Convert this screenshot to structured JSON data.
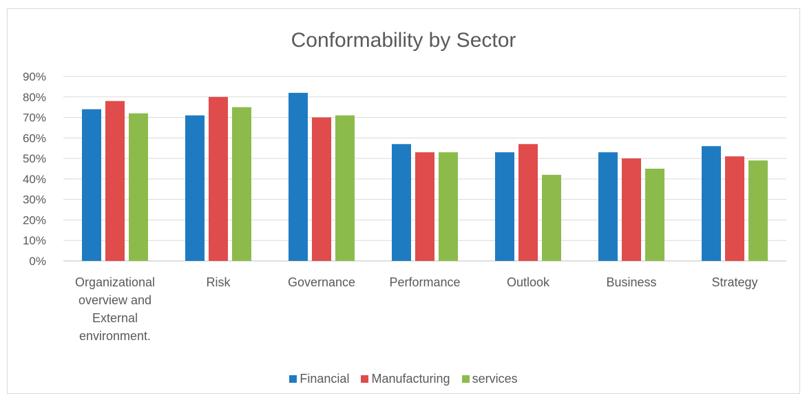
{
  "chart_data": {
    "type": "bar",
    "title": "Conformability  by Sector",
    "categories": [
      [
        "Organizational",
        "overview and",
        "External",
        "environment."
      ],
      [
        "Risk"
      ],
      [
        "Governance"
      ],
      [
        "Performance"
      ],
      [
        "Outlook"
      ],
      [
        "Business"
      ],
      [
        "Strategy"
      ]
    ],
    "series": [
      {
        "name": "Financial",
        "color": "#1f7bc1",
        "values": [
          0.74,
          0.71,
          0.82,
          0.57,
          0.53,
          0.53,
          0.56
        ]
      },
      {
        "name": "Manufacturing",
        "color": "#e04b4b",
        "values": [
          0.78,
          0.8,
          0.7,
          0.53,
          0.57,
          0.5,
          0.51
        ]
      },
      {
        "name": "services",
        "color": "#8cbb4b",
        "values": [
          0.72,
          0.75,
          0.71,
          0.53,
          0.42,
          0.45,
          0.49
        ]
      }
    ],
    "yticks": [
      "0%",
      "10%",
      "20%",
      "30%",
      "40%",
      "50%",
      "60%",
      "70%",
      "80%",
      "90%"
    ],
    "ylim": [
      0,
      0.9
    ],
    "grid": true,
    "legend_position": "bottom"
  }
}
